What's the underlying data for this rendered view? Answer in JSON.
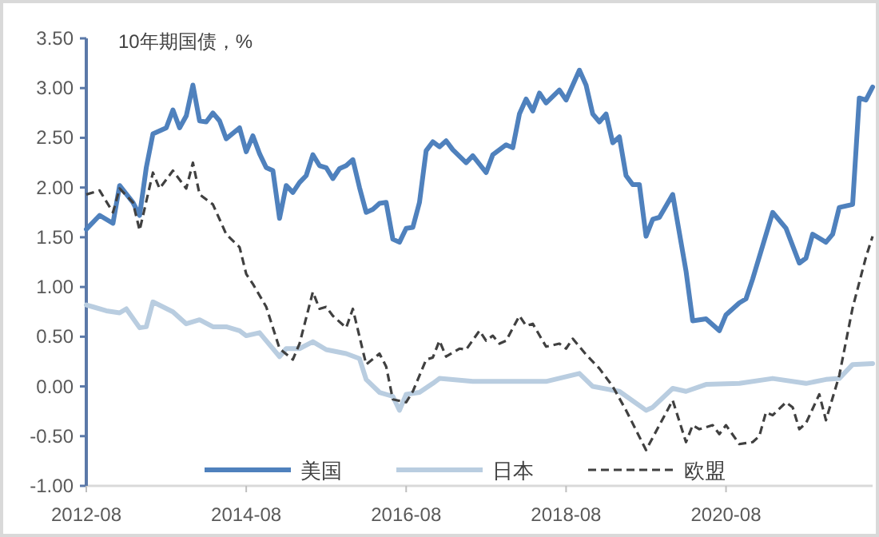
{
  "chart_data": {
    "type": "line",
    "title": "10年期国债，%",
    "legend": "bottom",
    "grid": false,
    "xlim": [
      "2012-08",
      "2022-06"
    ],
    "xticks": [
      "2012-08",
      "2014-08",
      "2016-08",
      "2018-08",
      "2020-08"
    ],
    "ylim": [
      -1,
      3.5
    ],
    "yticks": [
      {
        "value": -1,
        "label": "-1.00"
      },
      {
        "value": -0.5,
        "label": "-0.50"
      },
      {
        "value": 0,
        "label": "0.00"
      },
      {
        "value": 0.5,
        "label": "0.50"
      },
      {
        "value": 1,
        "label": "1.00"
      },
      {
        "value": 1.5,
        "label": "1.50"
      },
      {
        "value": 2,
        "label": "2.00"
      },
      {
        "value": 2.5,
        "label": "2.50"
      },
      {
        "value": 3,
        "label": "3.00"
      },
      {
        "value": 3.5,
        "label": "3.50"
      }
    ],
    "series": [
      {
        "name": "美国",
        "color": "#4f81bd",
        "line_style": "solid",
        "x": [
          "2012-08",
          "2012-10",
          "2012-12",
          "2013-01",
          "2013-03",
          "2013-04",
          "2013-05",
          "2013-06",
          "2013-08",
          "2013-09",
          "2013-10",
          "2013-11",
          "2013-12",
          "2014-01",
          "2014-02",
          "2014-03",
          "2014-04",
          "2014-05",
          "2014-07",
          "2014-08",
          "2014-09",
          "2014-10",
          "2014-11",
          "2014-12",
          "2015-01",
          "2015-02",
          "2015-03",
          "2015-04",
          "2015-05",
          "2015-06",
          "2015-07",
          "2015-08",
          "2015-09",
          "2015-10",
          "2015-11",
          "2015-12",
          "2016-01",
          "2016-02",
          "2016-03",
          "2016-04",
          "2016-05",
          "2016-06",
          "2016-07",
          "2016-08",
          "2016-09",
          "2016-10",
          "2016-11",
          "2016-12",
          "2017-01",
          "2017-02",
          "2017-03",
          "2017-05",
          "2017-06",
          "2017-08",
          "2017-09",
          "2017-11",
          "2017-12",
          "2018-01",
          "2018-02",
          "2018-03",
          "2018-04",
          "2018-05",
          "2018-07",
          "2018-08",
          "2018-10",
          "2018-11",
          "2018-12",
          "2019-01",
          "2019-02",
          "2019-03",
          "2019-04",
          "2019-05",
          "2019-06",
          "2019-07",
          "2019-08",
          "2019-09",
          "2019-10",
          "2019-12",
          "2020-02",
          "2020-03",
          "2020-05",
          "2020-07",
          "2020-08",
          "2020-10",
          "2020-11",
          "2020-12",
          "2021-03",
          "2021-05",
          "2021-07",
          "2021-08",
          "2021-09",
          "2021-11",
          "2021-12",
          "2022-01",
          "2022-03",
          "2022-04",
          "2022-05",
          "2022-06"
        ],
        "values": [
          1.58,
          1.72,
          1.64,
          2.02,
          1.85,
          1.72,
          2.2,
          2.54,
          2.6,
          2.78,
          2.6,
          2.72,
          3.03,
          2.67,
          2.66,
          2.75,
          2.67,
          2.49,
          2.6,
          2.36,
          2.52,
          2.34,
          2.2,
          2.17,
          1.69,
          2.02,
          1.95,
          2.05,
          2.12,
          2.33,
          2.22,
          2.2,
          2.09,
          2.19,
          2.22,
          2.28,
          2.0,
          1.75,
          1.78,
          1.84,
          1.85,
          1.48,
          1.45,
          1.59,
          1.6,
          1.85,
          2.37,
          2.46,
          2.41,
          2.47,
          2.38,
          2.25,
          2.32,
          2.15,
          2.33,
          2.43,
          2.4,
          2.74,
          2.89,
          2.77,
          2.95,
          2.85,
          2.98,
          2.88,
          3.18,
          3.03,
          2.74,
          2.66,
          2.74,
          2.45,
          2.51,
          2.12,
          2.03,
          2.03,
          1.51,
          1.68,
          1.7,
          1.93,
          1.16,
          0.66,
          0.68,
          0.56,
          0.72,
          0.84,
          0.88,
          1.08,
          1.75,
          1.59,
          1.24,
          1.29,
          1.53,
          1.45,
          1.53,
          1.8,
          1.83,
          2.9,
          2.88,
          3.01
        ]
      },
      {
        "name": "日本",
        "color": "#b9cde0",
        "line_style": "solid",
        "x": [
          "2012-08",
          "2012-09",
          "2012-11",
          "2013-01",
          "2013-02",
          "2013-04",
          "2013-05",
          "2013-06",
          "2013-09",
          "2013-11",
          "2014-01",
          "2014-03",
          "2014-05",
          "2014-07",
          "2014-08",
          "2014-10",
          "2014-11",
          "2015-01",
          "2015-02",
          "2015-04",
          "2015-06",
          "2015-08",
          "2015-11",
          "2016-01",
          "2016-02",
          "2016-04",
          "2016-06",
          "2016-07",
          "2016-08",
          "2016-10",
          "2016-12",
          "2017-01",
          "2017-06",
          "2017-12",
          "2018-05",
          "2018-10",
          "2018-12",
          "2019-04",
          "2019-08",
          "2019-09",
          "2019-12",
          "2020-02",
          "2020-05",
          "2020-10",
          "2021-03",
          "2021-08",
          "2021-11",
          "2022-01",
          "2022-03",
          "2022-06"
        ],
        "values": [
          0.82,
          0.8,
          0.76,
          0.74,
          0.78,
          0.59,
          0.6,
          0.85,
          0.75,
          0.63,
          0.67,
          0.6,
          0.6,
          0.56,
          0.51,
          0.54,
          0.46,
          0.3,
          0.38,
          0.38,
          0.45,
          0.37,
          0.33,
          0.28,
          0.07,
          -0.06,
          -0.1,
          -0.24,
          -0.08,
          -0.06,
          0.03,
          0.08,
          0.05,
          0.05,
          0.05,
          0.13,
          0.0,
          -0.05,
          -0.24,
          -0.21,
          -0.02,
          -0.05,
          0.02,
          0.03,
          0.08,
          0.03,
          0.07,
          0.08,
          0.22,
          0.23
        ]
      },
      {
        "name": "欧盟",
        "color": "#404040",
        "line_style": "dashed",
        "x": [
          "2012-08",
          "2012-10",
          "2012-12",
          "2013-01",
          "2013-03",
          "2013-04",
          "2013-06",
          "2013-07",
          "2013-09",
          "2013-11",
          "2013-12",
          "2014-01",
          "2014-03",
          "2014-05",
          "2014-07",
          "2014-08",
          "2014-09",
          "2014-11",
          "2015-01",
          "2015-03",
          "2015-04",
          "2015-06",
          "2015-07",
          "2015-08",
          "2015-09",
          "2015-11",
          "2015-12",
          "2016-02",
          "2016-04",
          "2016-05",
          "2016-06",
          "2016-08",
          "2016-09",
          "2016-11",
          "2016-12",
          "2017-01",
          "2017-02",
          "2017-04",
          "2017-05",
          "2017-07",
          "2017-08",
          "2017-09",
          "2017-10",
          "2017-11",
          "2018-01",
          "2018-02",
          "2018-03",
          "2018-05",
          "2018-07",
          "2018-08",
          "2018-09",
          "2018-11",
          "2019-01",
          "2019-03",
          "2019-05",
          "2019-08",
          "2019-10",
          "2019-12",
          "2020-02",
          "2020-03",
          "2020-04",
          "2020-06",
          "2020-07",
          "2020-08",
          "2020-10",
          "2020-12",
          "2021-01",
          "2021-02",
          "2021-03",
          "2021-05",
          "2021-06",
          "2021-07",
          "2021-08",
          "2021-10",
          "2021-11",
          "2022-01",
          "2022-03",
          "2022-05",
          "2022-06"
        ],
        "values": [
          1.93,
          1.97,
          1.75,
          1.99,
          1.85,
          1.57,
          2.15,
          1.99,
          2.17,
          1.99,
          2.25,
          1.93,
          1.83,
          1.53,
          1.4,
          1.13,
          1.03,
          0.8,
          0.38,
          0.27,
          0.43,
          0.95,
          0.78,
          0.8,
          0.71,
          0.59,
          0.78,
          0.22,
          0.33,
          0.2,
          -0.13,
          -0.16,
          -0.05,
          0.27,
          0.29,
          0.46,
          0.3,
          0.38,
          0.37,
          0.56,
          0.46,
          0.51,
          0.43,
          0.46,
          0.71,
          0.61,
          0.63,
          0.4,
          0.43,
          0.38,
          0.48,
          0.32,
          0.18,
          0.0,
          -0.24,
          -0.64,
          -0.39,
          -0.14,
          -0.56,
          -0.39,
          -0.43,
          -0.39,
          -0.48,
          -0.39,
          -0.58,
          -0.56,
          -0.5,
          -0.26,
          -0.29,
          -0.16,
          -0.21,
          -0.43,
          -0.37,
          -0.08,
          -0.34,
          0.11,
          0.79,
          1.3,
          1.51
        ]
      }
    ]
  }
}
